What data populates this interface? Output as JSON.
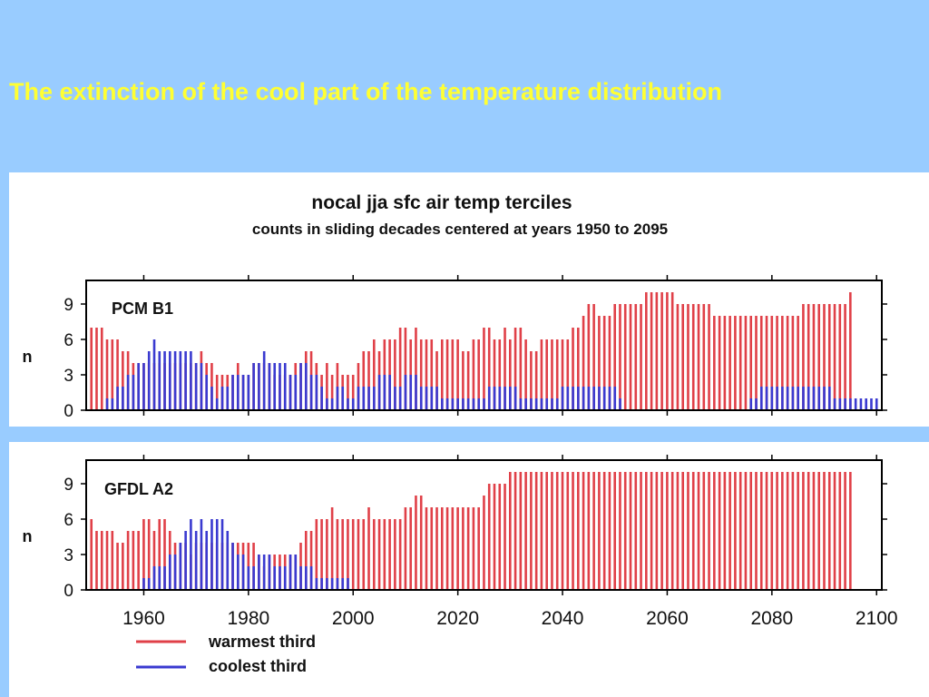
{
  "slide": {
    "title": "The extinction of the cool part of the temperature distribution"
  },
  "colors": {
    "background": "#99ccff",
    "title": "#ffff33",
    "warm": "#e04048",
    "cool": "#3a3ad0"
  },
  "chart_data": {
    "type": "bar",
    "title": "nocal jja sfc air temp terciles",
    "subtitle": "counts in sliding decades centered at years 1950 to 2095",
    "ylabel": "n",
    "ylim": [
      0,
      11
    ],
    "yticks": [
      0,
      3,
      6,
      9
    ],
    "xlim": [
      1949,
      2101
    ],
    "xticks": [
      1960,
      1980,
      2000,
      2020,
      2040,
      2060,
      2080,
      2100
    ],
    "legend": {
      "placement": "bottom-left",
      "entries": [
        "warmest third",
        "coolest third"
      ]
    },
    "panels": [
      {
        "label": "PCM B1",
        "x_start": 1950,
        "x_step": 1,
        "series": [
          {
            "name": "warmest third",
            "color": "#e04048",
            "values": [
              7,
              7,
              7,
              6,
              6,
              6,
              5,
              5,
              4,
              4,
              4,
              4,
              4,
              4,
              4,
              4,
              4,
              4,
              4,
              4,
              4,
              5,
              4,
              4,
              3,
              3,
              3,
              3,
              4,
              3,
              3,
              4,
              4,
              4,
              4,
              3,
              3,
              3,
              3,
              4,
              4,
              5,
              5,
              4,
              3,
              4,
              3,
              4,
              3,
              3,
              3,
              4,
              5,
              5,
              6,
              5,
              6,
              6,
              6,
              7,
              7,
              6,
              7,
              6,
              6,
              6,
              5,
              6,
              6,
              6,
              6,
              5,
              5,
              6,
              6,
              7,
              7,
              6,
              6,
              7,
              6,
              7,
              7,
              6,
              5,
              5,
              6,
              6,
              6,
              6,
              6,
              6,
              7,
              7,
              8,
              9,
              9,
              8,
              8,
              8,
              9,
              9,
              9,
              9,
              9,
              9,
              10,
              10,
              10,
              10,
              10,
              10,
              9,
              9,
              9,
              9,
              9,
              9,
              9,
              8,
              8,
              8,
              8,
              8,
              8,
              8,
              8,
              8,
              8,
              8,
              8,
              8,
              8,
              8,
              8,
              8,
              9,
              9,
              9,
              9,
              9,
              9,
              9,
              9,
              9,
              10
            ]
          },
          {
            "name": "coolest third",
            "color": "#3a3ad0",
            "values": [
              0,
              0,
              0,
              1,
              1,
              2,
              2,
              3,
              3,
              4,
              4,
              5,
              6,
              5,
              5,
              5,
              5,
              5,
              5,
              5,
              4,
              4,
              3,
              2,
              1,
              2,
              2,
              3,
              3,
              3,
              3,
              4,
              4,
              5,
              4,
              4,
              4,
              4,
              3,
              3,
              4,
              4,
              3,
              3,
              2,
              1,
              1,
              2,
              2,
              1,
              1,
              2,
              2,
              2,
              2,
              3,
              3,
              3,
              2,
              2,
              3,
              3,
              3,
              2,
              2,
              2,
              2,
              1,
              1,
              1,
              1,
              1,
              1,
              1,
              1,
              1,
              2,
              2,
              2,
              2,
              2,
              2,
              1,
              1,
              1,
              1,
              1,
              1,
              1,
              1,
              2,
              2,
              2,
              2,
              2,
              2,
              2,
              2,
              2,
              2,
              2,
              1,
              0,
              0,
              0,
              0,
              0,
              0,
              0,
              0,
              0,
              0,
              0,
              0,
              0,
              0,
              0,
              0,
              0,
              0,
              0,
              0,
              0,
              0,
              0,
              0,
              1,
              1,
              2,
              2,
              2,
              2,
              2,
              2,
              2,
              2,
              2,
              2,
              2,
              2,
              2,
              2,
              1,
              1,
              1,
              1,
              1,
              1,
              1,
              1,
              1,
              0
            ]
          }
        ]
      },
      {
        "label": "GFDL A2",
        "x_start": 1950,
        "x_step": 1,
        "series": [
          {
            "name": "warmest third",
            "color": "#e04048",
            "values": [
              6,
              5,
              5,
              5,
              5,
              4,
              4,
              5,
              5,
              5,
              6,
              6,
              5,
              6,
              6,
              5,
              4,
              4,
              4,
              3,
              4,
              4,
              4,
              4,
              4,
              4,
              4,
              4,
              4,
              4,
              4,
              4,
              3,
              2,
              3,
              3,
              3,
              3,
              3,
              3,
              4,
              5,
              5,
              6,
              6,
              6,
              7,
              6,
              6,
              6,
              6,
              6,
              6,
              7,
              6,
              6,
              6,
              6,
              6,
              6,
              7,
              7,
              8,
              8,
              7,
              7,
              7,
              7,
              7,
              7,
              7,
              7,
              7,
              7,
              7,
              8,
              9,
              9,
              9,
              9,
              10,
              10,
              10,
              10,
              10,
              10,
              10,
              10,
              10,
              10,
              10,
              10,
              10,
              10,
              10,
              10,
              10,
              10,
              10,
              10,
              10,
              10,
              10,
              10,
              10,
              10,
              10,
              10,
              10,
              10,
              10,
              10,
              10,
              10,
              10,
              10,
              10,
              10,
              10,
              10,
              10,
              10,
              10,
              10,
              10,
              10,
              10,
              10,
              10,
              10,
              10,
              10,
              10,
              10,
              10,
              10,
              10,
              10,
              10,
              10,
              10,
              10,
              10,
              10,
              10,
              10
            ]
          },
          {
            "name": "coolest third",
            "color": "#3a3ad0",
            "values": [
              0,
              0,
              0,
              0,
              0,
              0,
              0,
              0,
              0,
              0,
              1,
              1,
              2,
              2,
              2,
              3,
              3,
              4,
              5,
              6,
              5,
              6,
              5,
              6,
              6,
              6,
              5,
              4,
              3,
              3,
              2,
              2,
              3,
              3,
              3,
              2,
              2,
              2,
              3,
              3,
              2,
              2,
              2,
              1,
              1,
              1,
              1,
              1,
              1,
              1,
              0,
              0,
              0,
              0,
              0,
              0,
              0,
              0,
              0,
              0,
              0,
              0,
              0,
              0,
              0,
              0,
              0,
              0,
              0,
              0,
              0,
              0,
              0,
              0,
              0,
              0,
              0,
              0,
              0,
              0,
              0,
              0,
              0,
              0,
              0,
              0,
              0,
              0,
              0,
              0,
              0,
              0,
              0,
              0,
              0,
              0,
              0,
              0,
              0,
              0,
              0,
              0,
              0,
              0,
              0,
              0,
              0,
              0,
              0,
              0,
              0,
              0,
              0,
              0,
              0,
              0,
              0,
              0,
              0,
              0,
              0,
              0,
              0,
              0,
              0,
              0,
              0,
              0,
              0,
              0,
              0,
              0,
              0,
              0,
              0,
              0,
              0,
              0,
              0,
              0,
              0,
              0,
              0,
              0,
              0,
              0
            ]
          }
        ]
      }
    ]
  }
}
